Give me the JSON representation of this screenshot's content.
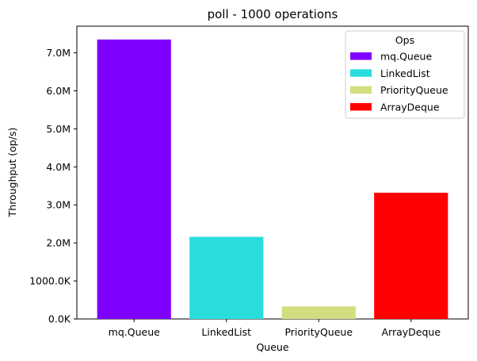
{
  "chart_data": {
    "type": "bar",
    "title": "poll - 1000 operations",
    "xlabel": "Queue",
    "ylabel": "Throughput (op/s)",
    "categories": [
      "mq.Queue",
      "LinkedList",
      "PriorityQueue",
      "ArrayDeque"
    ],
    "values": [
      7350000,
      2160000,
      330000,
      3320000
    ],
    "colors": [
      "#8000ff",
      "#2adddd",
      "#d4dd80",
      "#ff0000"
    ],
    "ylim": [
      0,
      7700000
    ],
    "yticks": [
      0,
      1000000,
      2000000,
      3000000,
      4000000,
      5000000,
      6000000,
      7000000
    ],
    "ytick_labels": [
      "0.0K",
      "1000.0K",
      "2.0M",
      "3.0M",
      "4.0M",
      "5.0M",
      "6.0M",
      "7.0M"
    ],
    "grid": false,
    "legend": {
      "title": "Ops",
      "placement": "top-right",
      "entries": [
        "mq.Queue",
        "LinkedList",
        "PriorityQueue",
        "ArrayDeque"
      ]
    }
  }
}
